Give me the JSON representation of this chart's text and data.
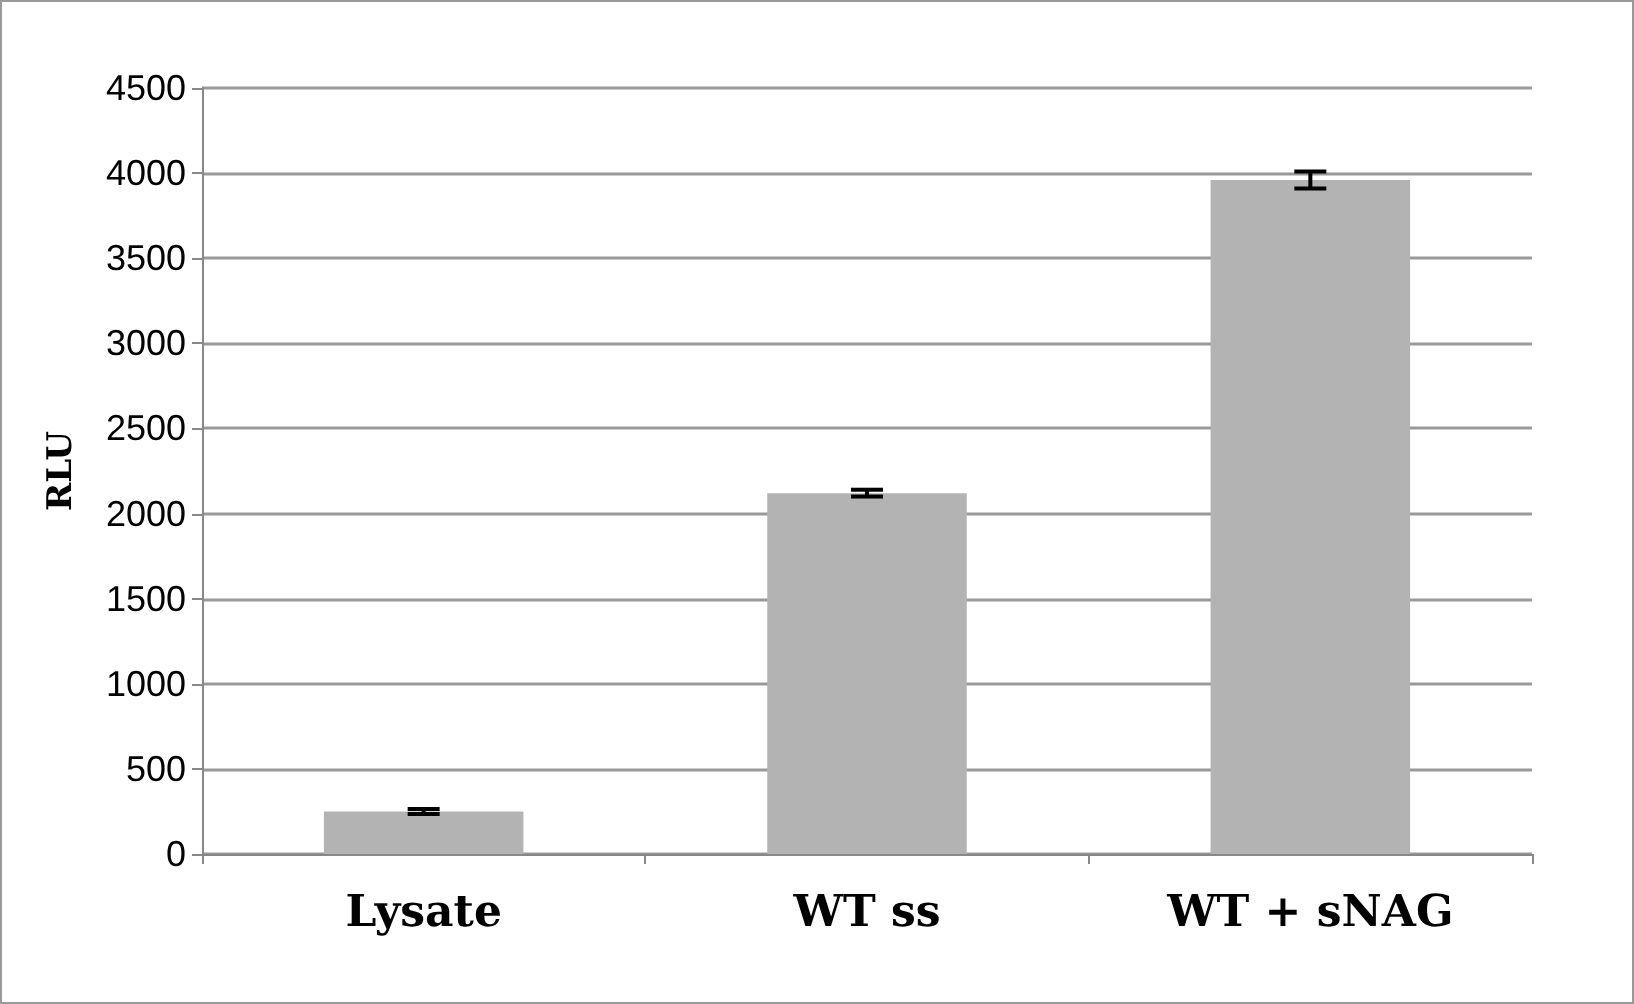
{
  "chart_data": {
    "type": "bar",
    "ylabel": "RLU",
    "categories": [
      "Lysate",
      "WT ss",
      "WT + sNAG"
    ],
    "values": [
      250,
      2120,
      3960
    ],
    "errors": [
      15,
      20,
      50
    ],
    "color": "#b3b3b3",
    "ylim": [
      0,
      4500
    ],
    "yticks": [
      0,
      500,
      1000,
      1500,
      2000,
      2500,
      3000,
      3500,
      4000,
      4500
    ],
    "grid": "y"
  }
}
